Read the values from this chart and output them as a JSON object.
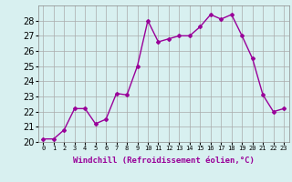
{
  "x": [
    0,
    1,
    2,
    3,
    4,
    5,
    6,
    7,
    8,
    9,
    10,
    11,
    12,
    13,
    14,
    15,
    16,
    17,
    18,
    19,
    20,
    21,
    22,
    23
  ],
  "y": [
    20.2,
    20.2,
    20.8,
    22.2,
    22.2,
    21.2,
    21.5,
    23.2,
    23.1,
    25.0,
    28.0,
    26.6,
    26.8,
    27.0,
    27.0,
    27.6,
    28.4,
    28.1,
    28.4,
    27.0,
    25.5,
    23.1,
    22.0,
    22.2
  ],
  "line_color": "#990099",
  "marker": "D",
  "marker_size": 2,
  "line_width": 1,
  "xlabel": "Windchill (Refroidissement éolien,°C)",
  "xlabel_fontsize": 6.5,
  "ylim": [
    20,
    29
  ],
  "xlim": [
    -0.5,
    23.5
  ],
  "yticks": [
    20,
    21,
    22,
    23,
    24,
    25,
    26,
    27,
    28
  ],
  "xtick_labels": [
    "0",
    "1",
    "2",
    "3",
    "4",
    "5",
    "6",
    "7",
    "8",
    "9",
    "10",
    "11",
    "12",
    "13",
    "14",
    "15",
    "16",
    "17",
    "18",
    "19",
    "20",
    "21",
    "22",
    "23"
  ],
  "grid_color": "#aaaaaa",
  "bg_color": "#d8f0f0",
  "tick_fontsize": 7,
  "fig_bg": "#d8f0f0"
}
